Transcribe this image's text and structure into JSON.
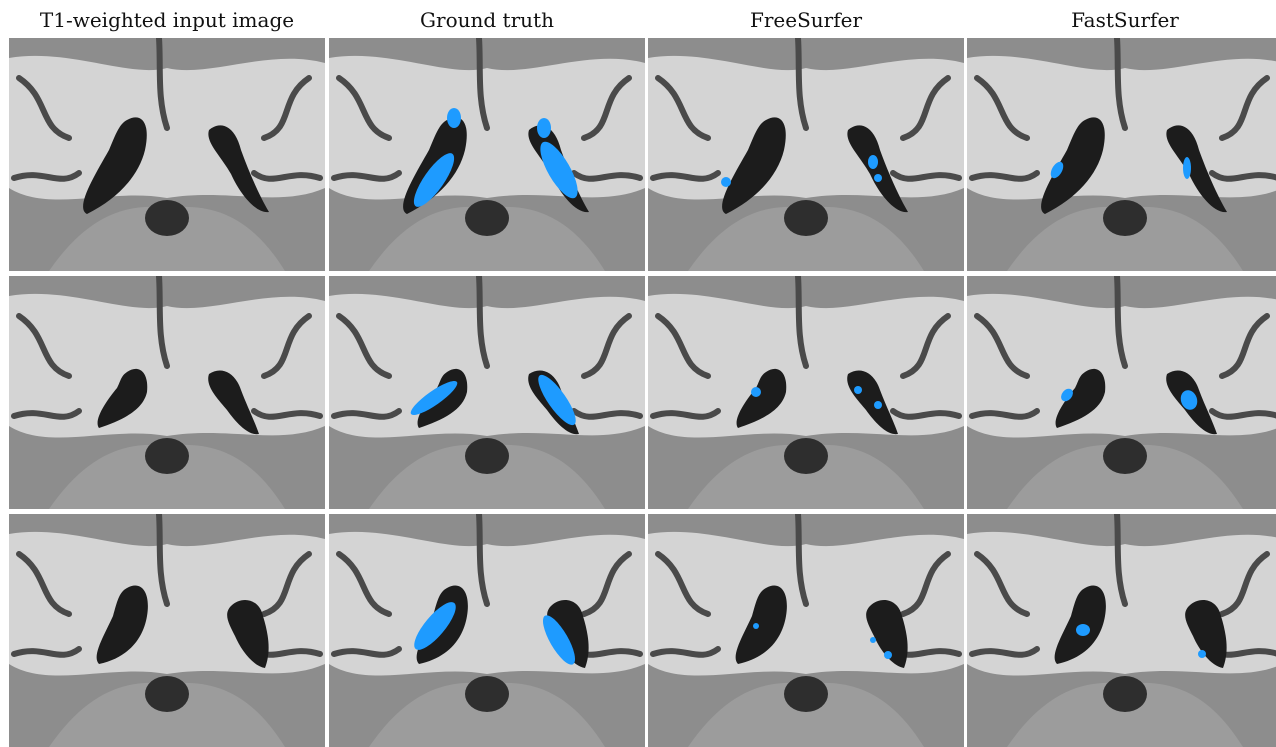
{
  "figure": {
    "columns": [
      {
        "title": "T1-weighted input image",
        "overlay": "none"
      },
      {
        "title": "Ground truth",
        "overlay": "ground-truth"
      },
      {
        "title": "FreeSurfer",
        "overlay": "freesurfer"
      },
      {
        "title": "FastSurfer",
        "overlay": "fastsurfer"
      }
    ],
    "rows": 3,
    "slice_view": "coronal MRI slice",
    "segmentation_color": "#1e9bff",
    "background_color": "#ffffff"
  }
}
